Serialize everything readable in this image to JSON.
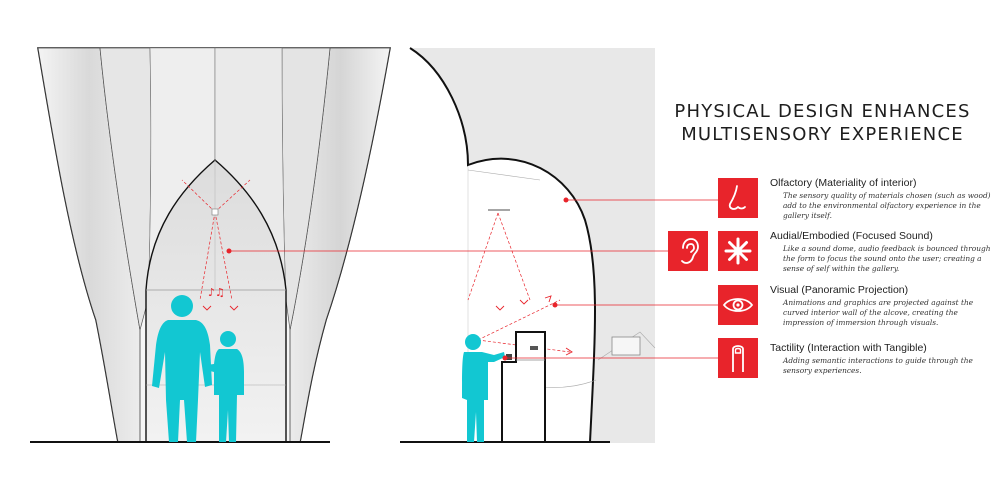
{
  "title": {
    "line1": "PHYSICAL DESIGN ENHANCES",
    "line2": "MULTISENSORY EXPERIENCE"
  },
  "senses": [
    {
      "heading": "Olfactory (Materiality of interior)",
      "description": "The sensory quality of materials chosen (such as wood) add to the environmental olfactory experience in the gallery itself.",
      "icon": "nose-icon"
    },
    {
      "heading": "Audial/Embodied (Focused Sound)",
      "description": "Like a sound dome, audio feedback is bounced through the form to focus the sound onto the user; creating a sense of self within the gallery.",
      "icon": "ear-icon",
      "icon2": "asterisk-icon"
    },
    {
      "heading": "Visual (Panoramic Projection)",
      "description": "Animations and graphics are projected against the curved interior wall of the alcove, creating the impression of immersion through visuals.",
      "icon": "eye-icon"
    },
    {
      "heading": "Tactility (Interaction with Tangible)",
      "description": "Adding semantic interactions to guide through the sensory experiences.",
      "icon": "finger-icon"
    }
  ],
  "colors": {
    "accent": "#e8242b",
    "figure": "#12c7d2",
    "wall": "#e8e8e8",
    "line": "#111111"
  }
}
